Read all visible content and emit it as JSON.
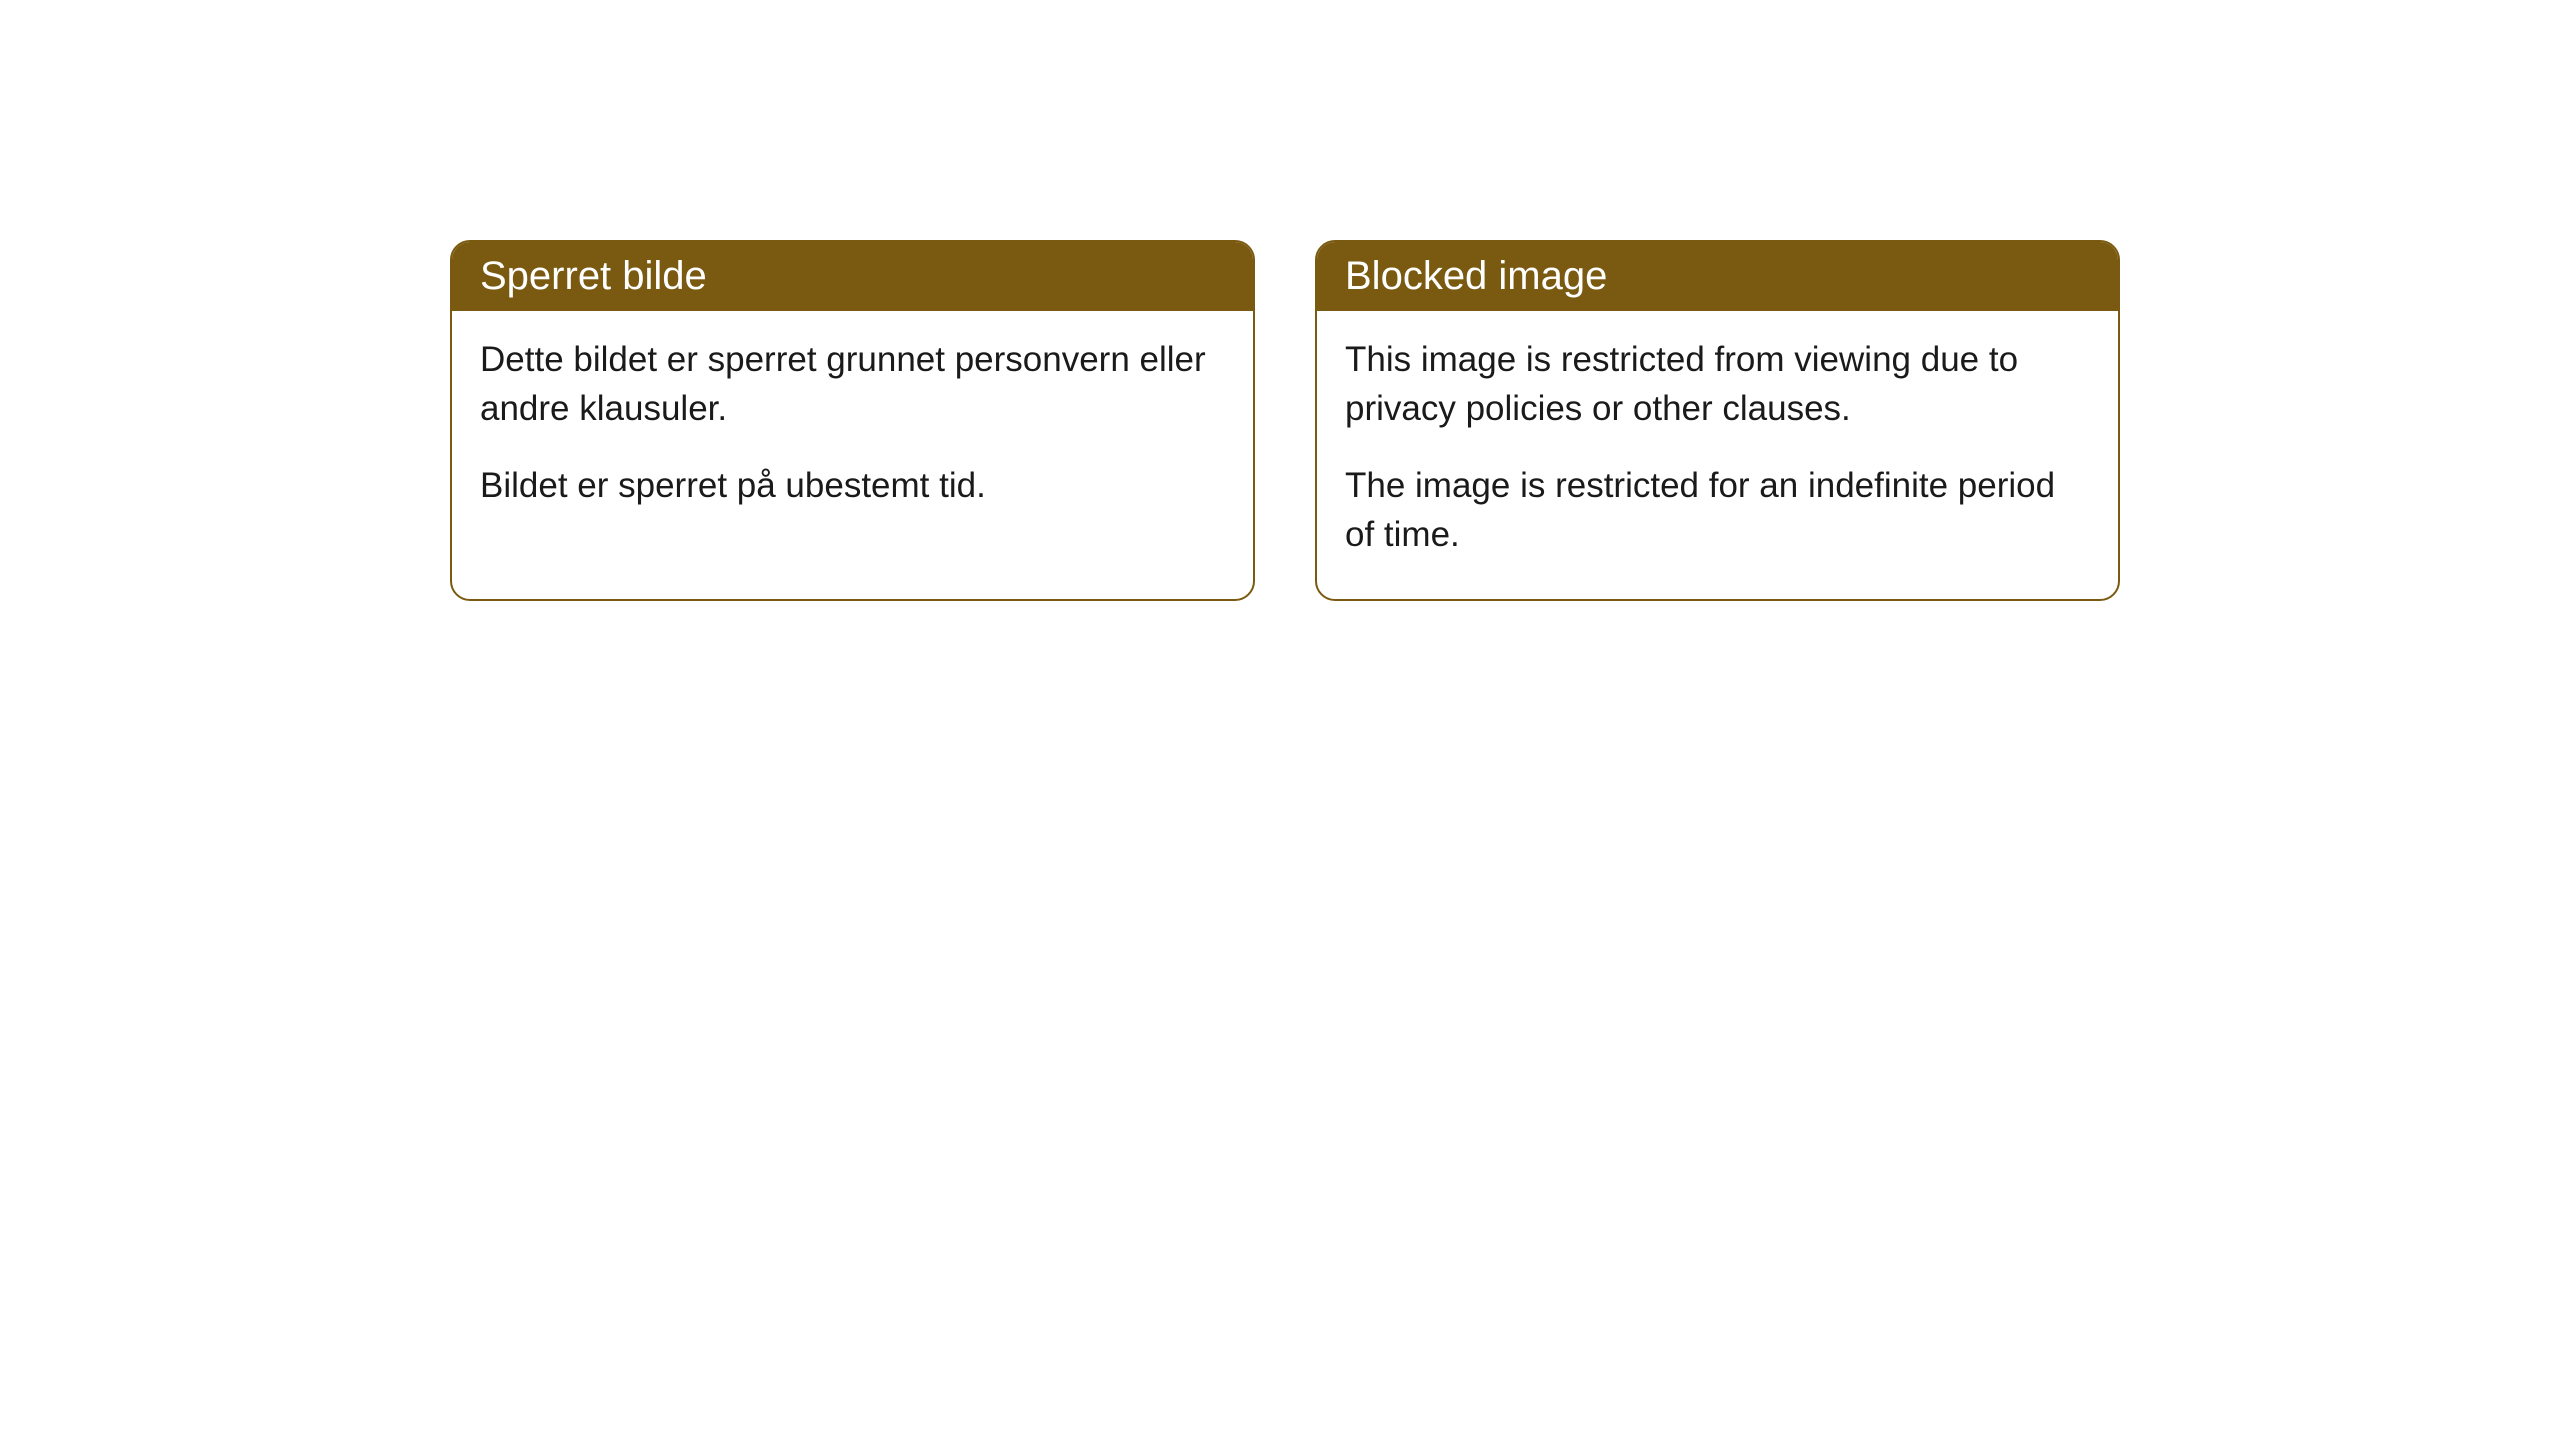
{
  "cards": [
    {
      "title": "Sperret bilde",
      "paragraph1": "Dette bildet er sperret grunnet personvern eller andre klausuler.",
      "paragraph2": "Bildet er sperret på ubestemt tid."
    },
    {
      "title": "Blocked image",
      "paragraph1": "This image is restricted from viewing due to privacy policies or other clauses.",
      "paragraph2": "The image is restricted for an indefinite period of time."
    }
  ],
  "styling": {
    "header_background": "#7a5a11",
    "header_text_color": "#ffffff",
    "border_color": "#7a5a11",
    "card_background": "#ffffff",
    "body_text_color": "#1a1a1a",
    "page_background": "#ffffff",
    "border_radius": 20,
    "title_fontsize": 40,
    "body_fontsize": 35
  }
}
